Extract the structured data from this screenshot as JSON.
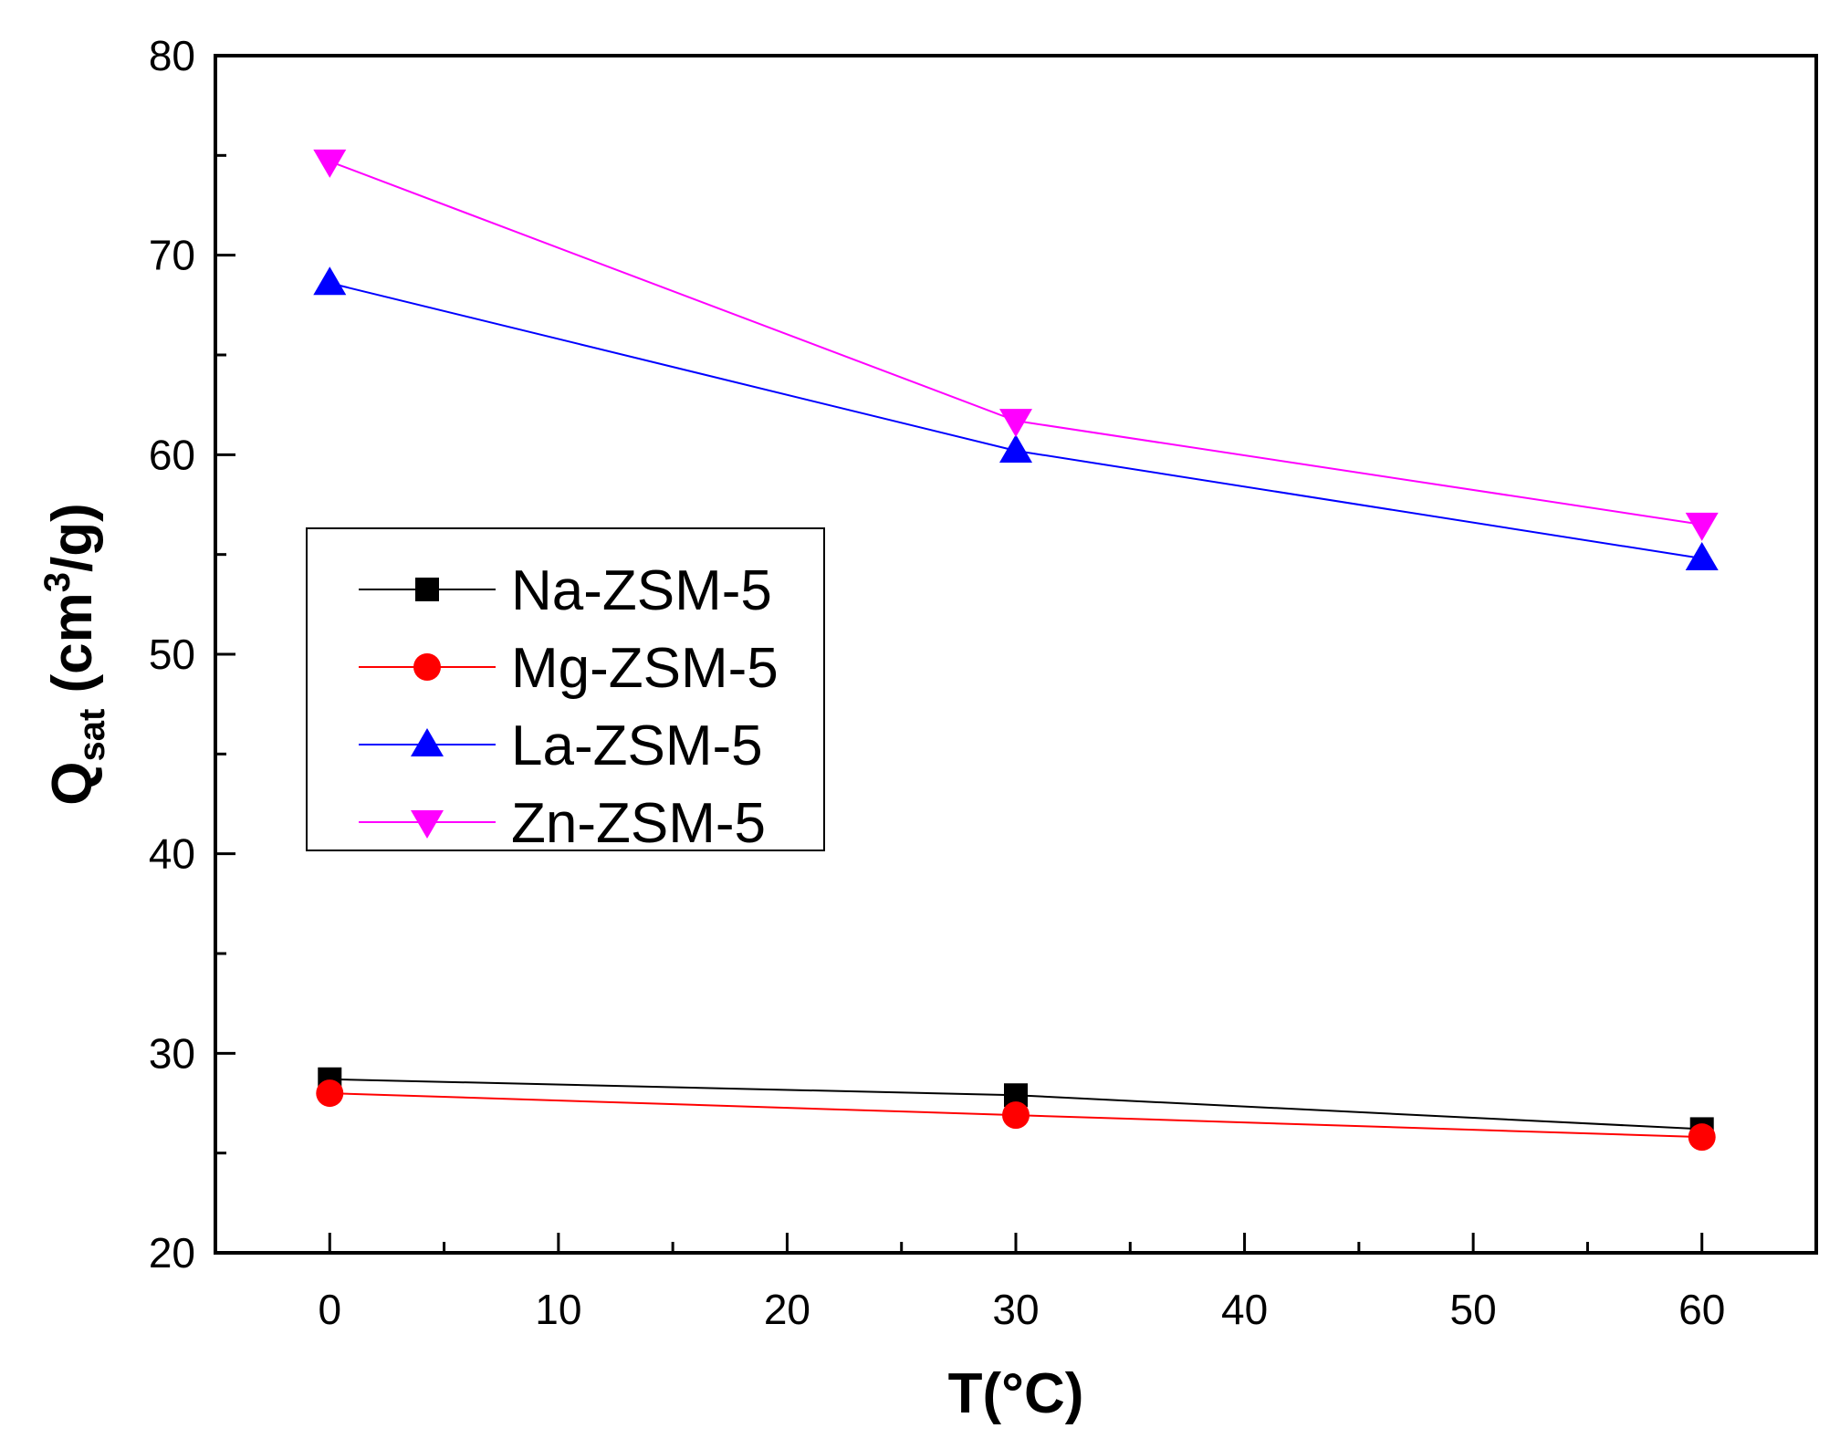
{
  "chart_data": {
    "type": "line",
    "title": "",
    "xlabel": "T(°C)",
    "ylabel": {
      "main": "Q",
      "sub": "sat",
      "units_open": " (cm",
      "sup": "3",
      "units_close": "/g)"
    },
    "xlim": [
      -5,
      65
    ],
    "ylim": [
      20,
      80
    ],
    "x_ticks": [
      0,
      10,
      20,
      30,
      40,
      50,
      60
    ],
    "y_ticks": [
      20,
      30,
      40,
      50,
      60,
      70,
      80
    ],
    "grid": false,
    "legend_position": "center-left",
    "x": [
      0,
      30,
      60
    ],
    "series": [
      {
        "name": "Na-ZSM-5",
        "color": "#000000",
        "marker": "square",
        "values": [
          28.7,
          27.9,
          26.2
        ]
      },
      {
        "name": "Mg-ZSM-5",
        "color": "#ff0000",
        "marker": "circle",
        "values": [
          28.0,
          26.9,
          25.8
        ]
      },
      {
        "name": "La-ZSM-5",
        "color": "#0000ff",
        "marker": "triangle-up",
        "values": [
          68.6,
          60.2,
          54.8
        ]
      },
      {
        "name": "Zn-ZSM-5",
        "color": "#ff00ff",
        "marker": "triangle-down",
        "values": [
          74.7,
          61.7,
          56.5
        ]
      }
    ]
  }
}
